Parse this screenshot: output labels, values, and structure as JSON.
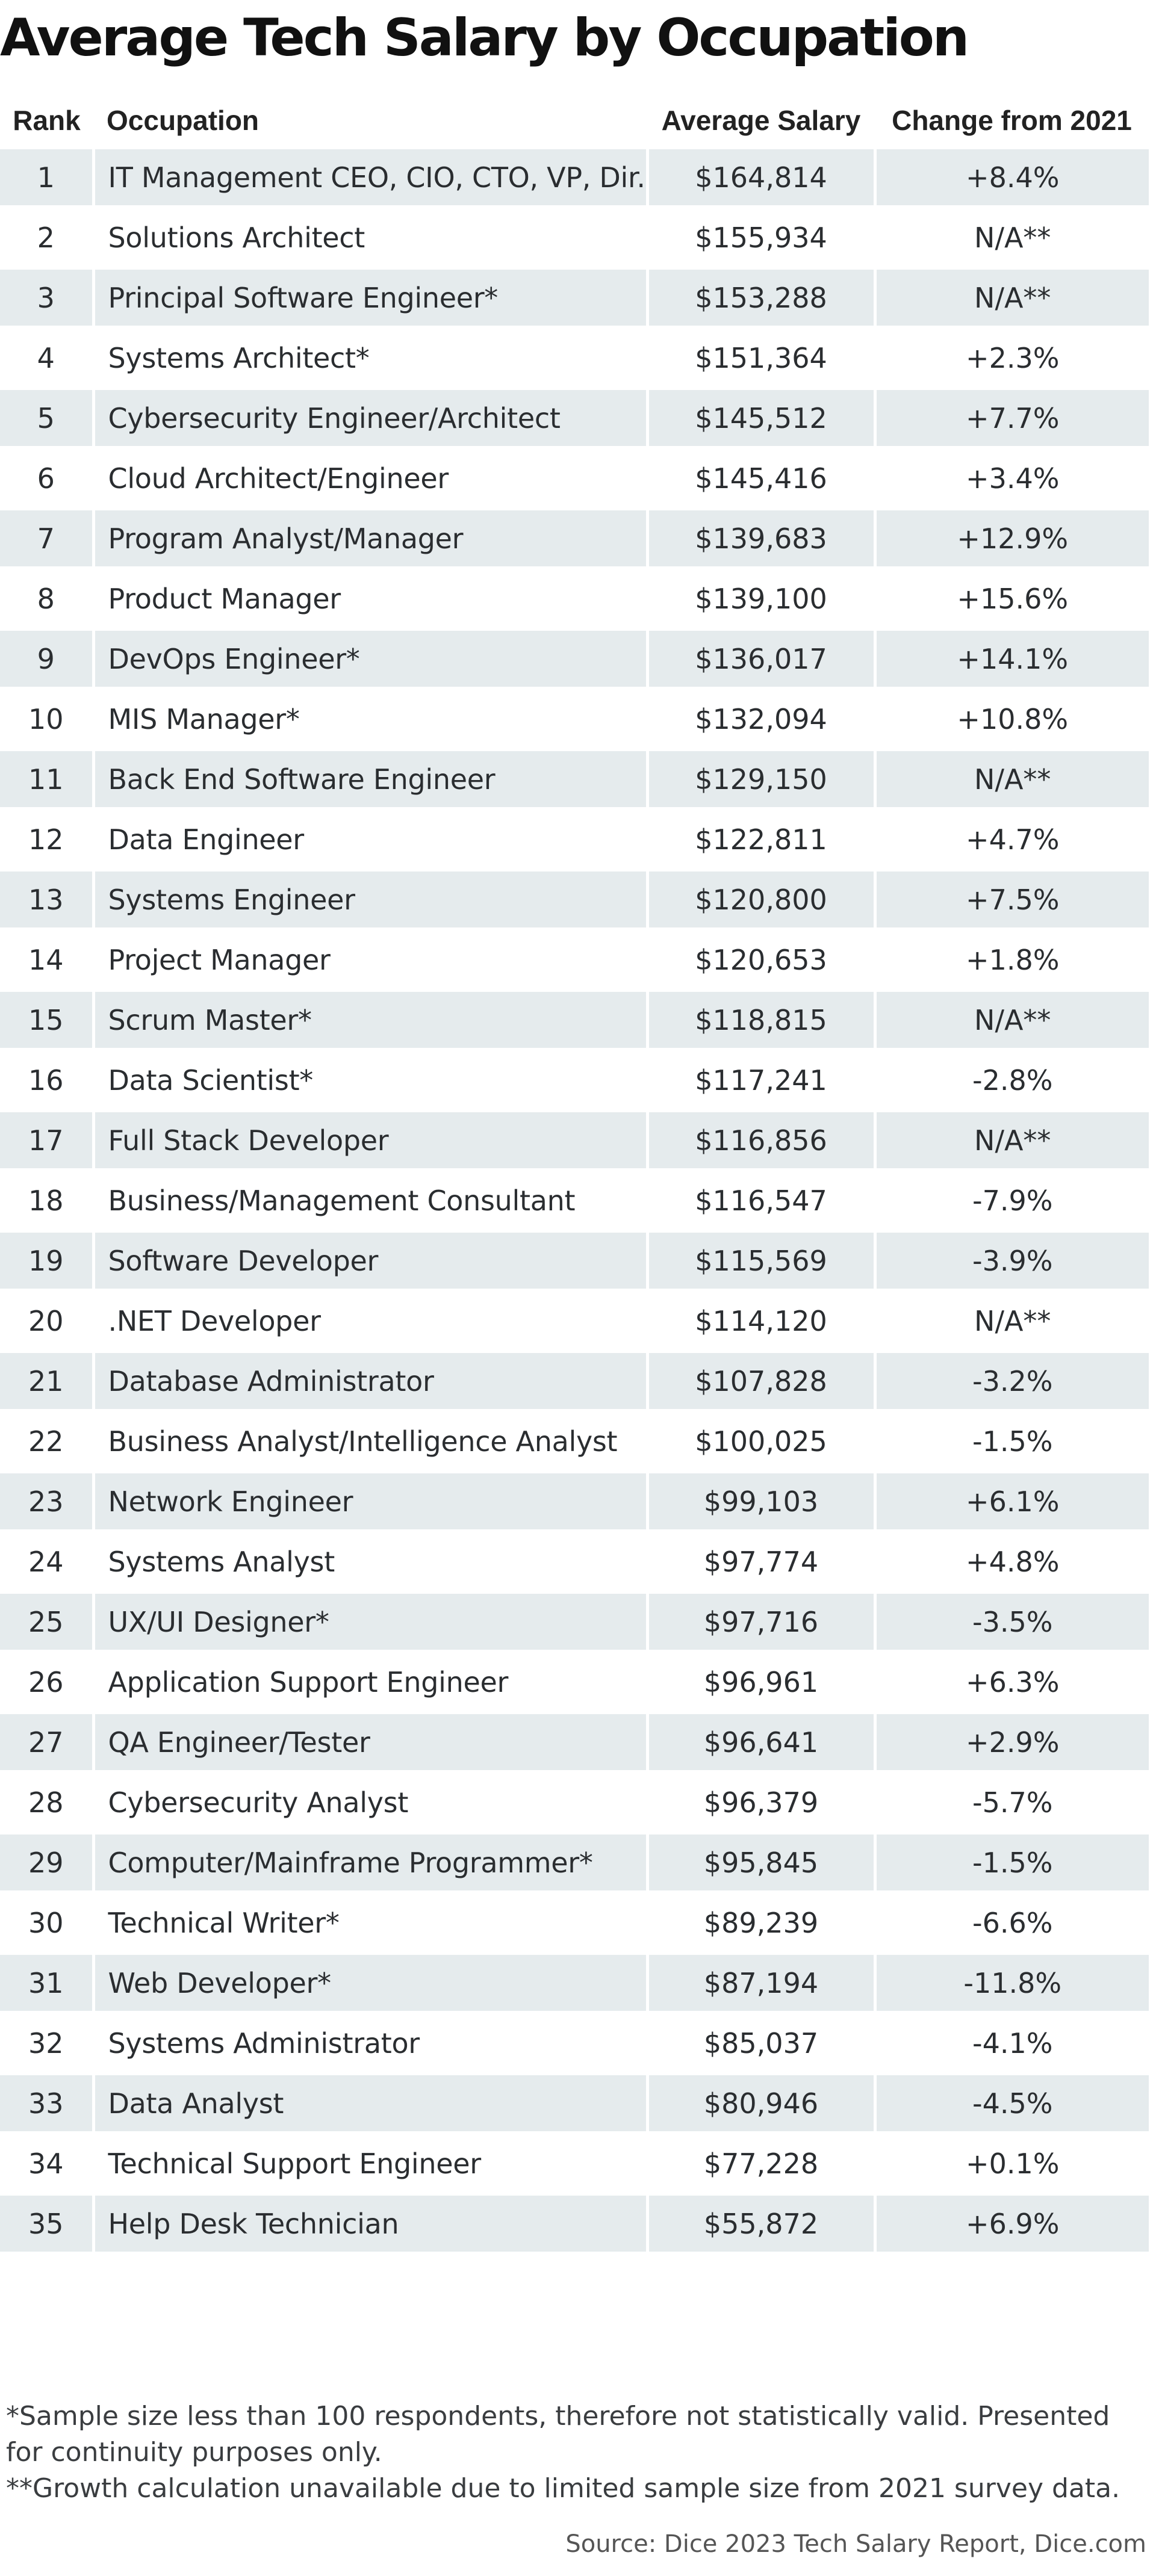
{
  "chart_data": {
    "type": "table",
    "title": "Average Tech Salary by Occupation",
    "columns": [
      "Rank",
      "Occupation",
      "Average Salary",
      "Change from 2021"
    ],
    "rows": [
      [
        "1",
        "IT Management CEO, CIO, CTO, VP, Dir.",
        "$164,814",
        "+8.4%"
      ],
      [
        "2",
        "Solutions Architect",
        "$155,934",
        "N/A**"
      ],
      [
        "3",
        "Principal Software Engineer*",
        "$153,288",
        "N/A**"
      ],
      [
        "4",
        "Systems Architect*",
        "$151,364",
        "+2.3%"
      ],
      [
        "5",
        "Cybersecurity Engineer/Architect",
        "$145,512",
        "+7.7%"
      ],
      [
        "6",
        "Cloud Architect/Engineer",
        "$145,416",
        "+3.4%"
      ],
      [
        "7",
        "Program Analyst/Manager",
        "$139,683",
        "+12.9%"
      ],
      [
        "8",
        "Product Manager",
        "$139,100",
        "+15.6%"
      ],
      [
        "9",
        "DevOps Engineer*",
        "$136,017",
        "+14.1%"
      ],
      [
        "10",
        "MIS Manager*",
        "$132,094",
        "+10.8%"
      ],
      [
        "11",
        "Back End Software Engineer",
        "$129,150",
        "N/A**"
      ],
      [
        "12",
        "Data Engineer",
        "$122,811",
        "+4.7%"
      ],
      [
        "13",
        "Systems Engineer",
        "$120,800",
        "+7.5%"
      ],
      [
        "14",
        "Project Manager",
        "$120,653",
        "+1.8%"
      ],
      [
        "15",
        "Scrum Master*",
        "$118,815",
        "N/A**"
      ],
      [
        "16",
        "Data Scientist*",
        "$117,241",
        "-2.8%"
      ],
      [
        "17",
        "Full Stack Developer",
        "$116,856",
        "N/A**"
      ],
      [
        "18",
        "Business/Management Consultant",
        "$116,547",
        "-7.9%"
      ],
      [
        "19",
        "Software Developer",
        "$115,569",
        "-3.9%"
      ],
      [
        "20",
        ".NET Developer",
        "$114,120",
        "N/A**"
      ],
      [
        "21",
        "Database Administrator",
        "$107,828",
        "-3.2%"
      ],
      [
        "22",
        "Business Analyst/Intelligence Analyst",
        "$100,025",
        "-1.5%"
      ],
      [
        "23",
        "Network Engineer",
        "$99,103",
        "+6.1%"
      ],
      [
        "24",
        "Systems Analyst",
        "$97,774",
        "+4.8%"
      ],
      [
        "25",
        "UX/UI Designer*",
        "$97,716",
        "-3.5%"
      ],
      [
        "26",
        "Application Support Engineer",
        "$96,961",
        "+6.3%"
      ],
      [
        "27",
        "QA Engineer/Tester",
        "$96,641",
        "+2.9%"
      ],
      [
        "28",
        "Cybersecurity Analyst",
        "$96,379",
        "-5.7%"
      ],
      [
        "29",
        "Computer/Mainframe Programmer*",
        "$95,845",
        "-1.5%"
      ],
      [
        "30",
        "Technical Writer*",
        "$89,239",
        "-6.6%"
      ],
      [
        "31",
        "Web Developer*",
        "$87,194",
        "-11.8%"
      ],
      [
        "32",
        "Systems Administrator",
        "$85,037",
        "-4.1%"
      ],
      [
        "33",
        "Data Analyst",
        "$80,946",
        "-4.5%"
      ],
      [
        "34",
        "Technical Support Engineer",
        "$77,228",
        "+0.1%"
      ],
      [
        "35",
        "Help Desk Technician",
        "$55,872",
        "+6.9%"
      ]
    ],
    "footnotes": [
      "*Sample size less than 100 respondents, therefore not statistically valid. Presented for continuity purposes only.",
      "**Growth calculation unavailable due to limited sample size from 2021 survey data."
    ],
    "source": "Source: Dice 2023 Tech Salary Report, Dice.com"
  },
  "colors": {
    "shaded_row": "#e5ebed",
    "text": "#2a2d30",
    "title": "#111111"
  }
}
